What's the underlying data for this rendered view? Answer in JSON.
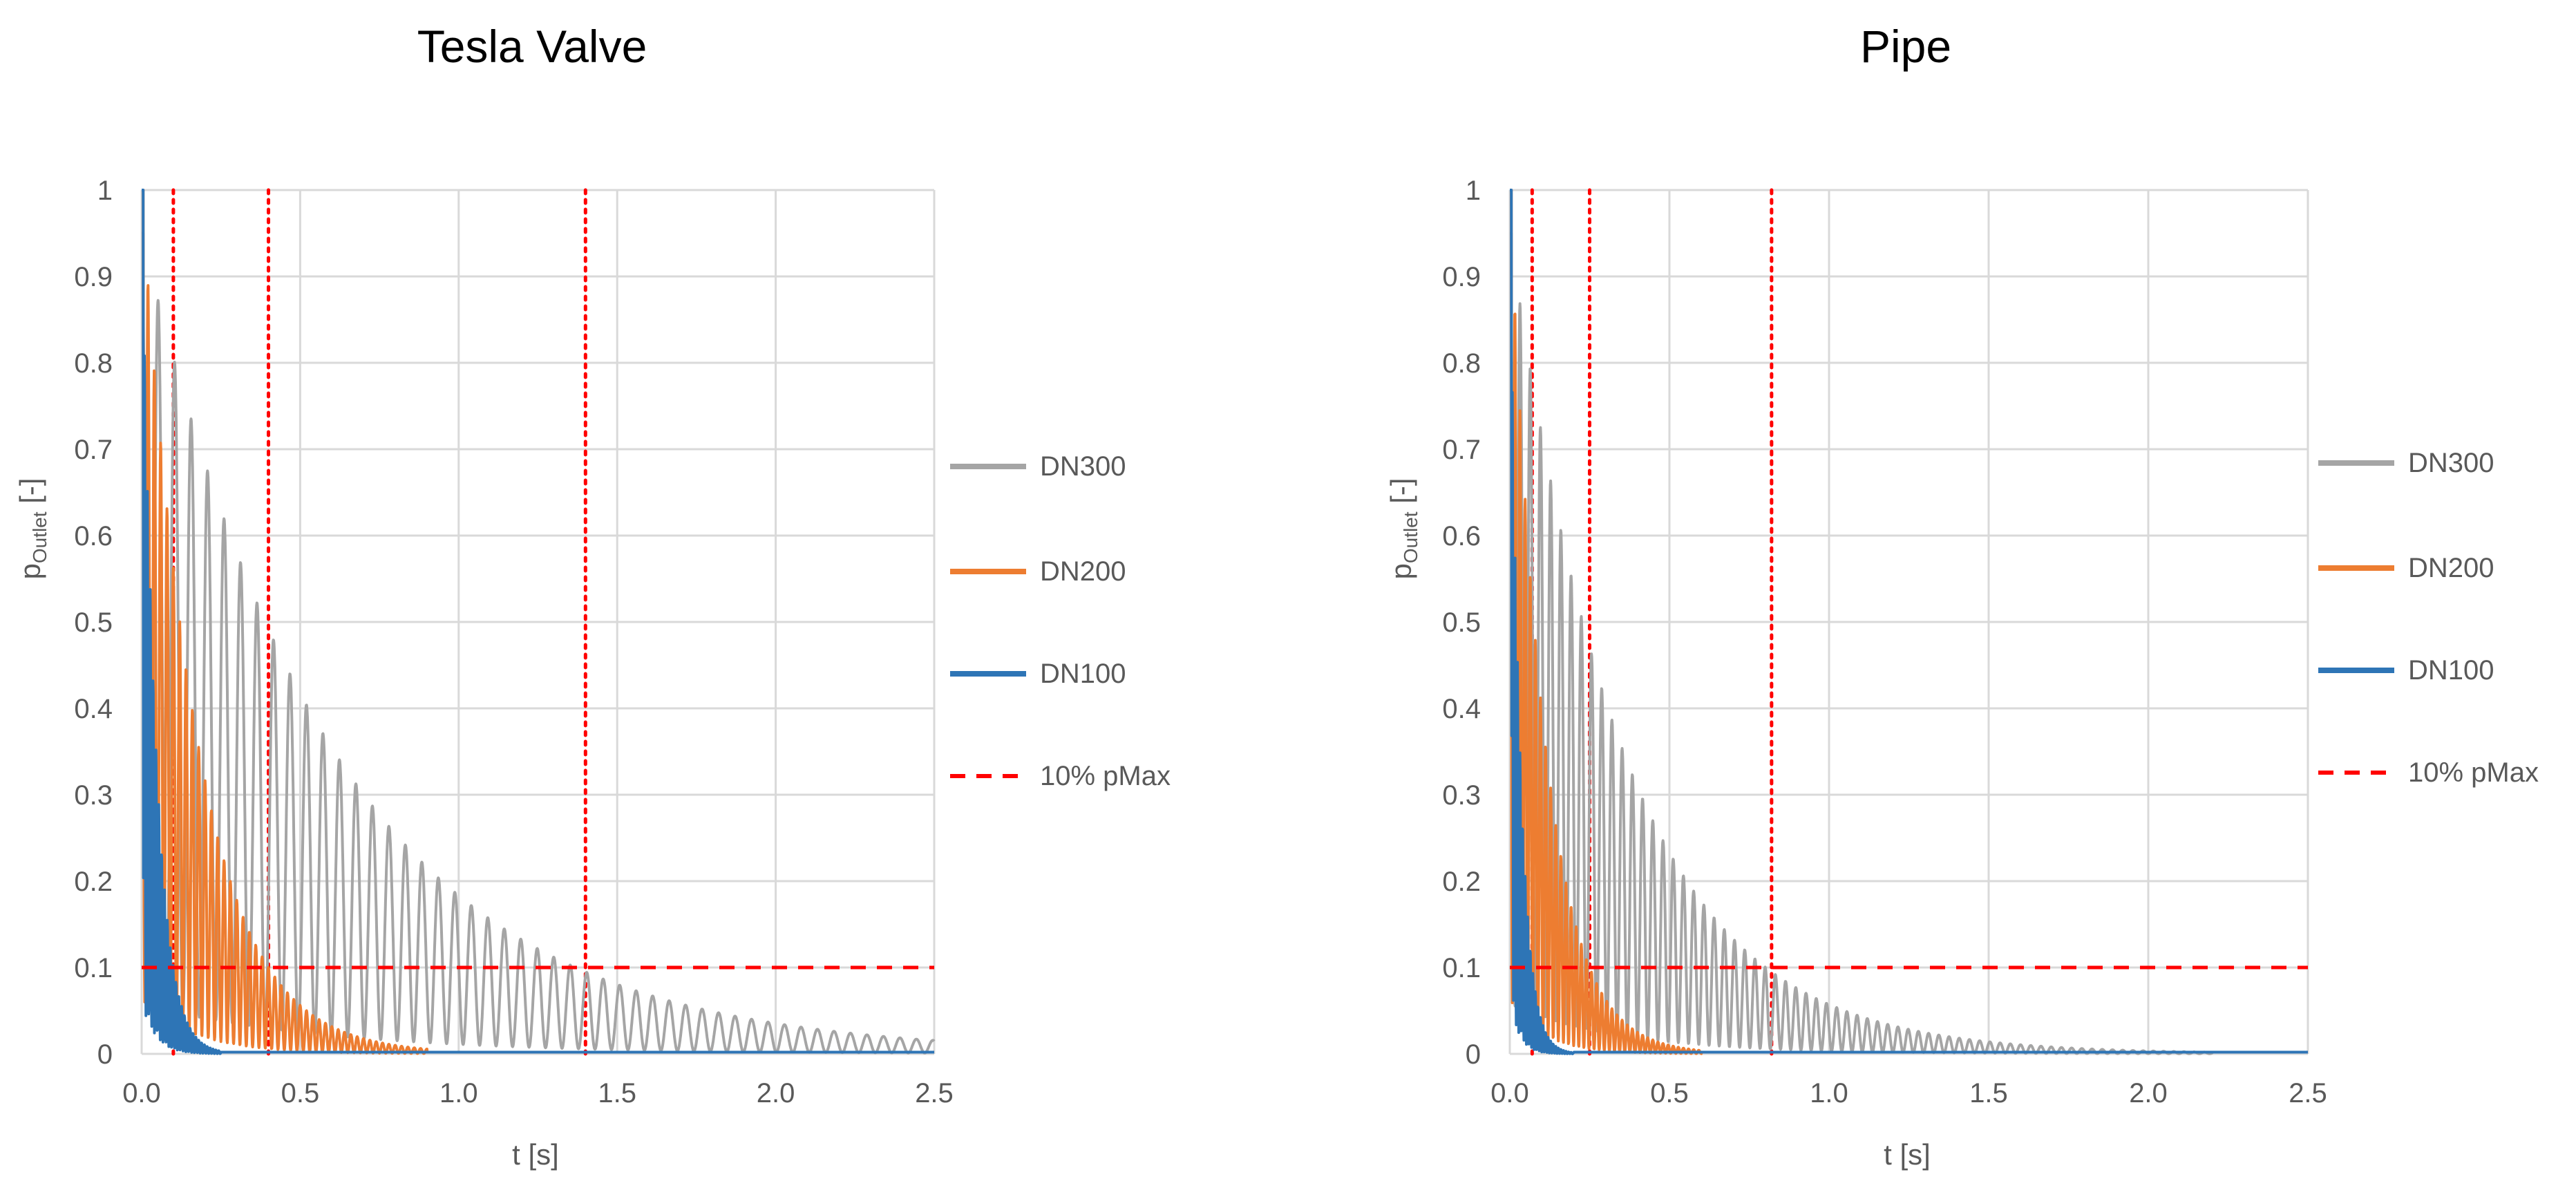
{
  "colors": {
    "DN300": "#a5a5a5",
    "DN200": "#ed7d31",
    "DN100": "#2e75b6",
    "pmax": "#ff0000",
    "grid": "#d9d9d9",
    "axis_text": "#595959"
  },
  "chart_data": [
    {
      "type": "line",
      "title": "Tesla Valve",
      "xlabel": "t [s]",
      "ylabel_main": "p",
      "ylabel_sub": "Outlet",
      "ylabel_unit": " [-]",
      "xlim": [
        0,
        2.5
      ],
      "ylim": [
        0,
        1
      ],
      "xticks": [
        "0.0",
        "0.5",
        "1.0",
        "1.5",
        "2.0",
        "2.5"
      ],
      "yticks": [
        "0",
        "0.1",
        "0.2",
        "0.3",
        "0.4",
        "0.5",
        "0.6",
        "0.7",
        "0.8",
        "0.9",
        "1"
      ],
      "grid": true,
      "legend_position": "right",
      "series": [
        {
          "name": "DN300",
          "color_key": "DN300",
          "peak": 0.95,
          "decay_time": 1.4,
          "period": 0.052,
          "tail_end": 2.5
        },
        {
          "name": "DN200",
          "color_key": "DN200",
          "peak": 1.0,
          "decay_time": 0.4,
          "period": 0.02,
          "tail_end": 0.9
        },
        {
          "name": "DN100",
          "color_key": "DN100",
          "peak": 1.0,
          "decay_time": 0.1,
          "period": 0.009,
          "tail_end": 0.25
        }
      ],
      "threshold": {
        "name": "10% pMax",
        "y": 0.1,
        "color_key": "pmax"
      },
      "vlines": [
        0.1,
        0.4,
        1.4
      ]
    },
    {
      "type": "line",
      "title": "Pipe",
      "xlabel": "t [s]",
      "ylabel_main": "p",
      "ylabel_sub": "Outlet",
      "ylabel_unit": " [-]",
      "xlim": [
        0,
        2.5
      ],
      "ylim": [
        0,
        1
      ],
      "xticks": [
        "0.0",
        "0.5",
        "1.0",
        "1.5",
        "2.0",
        "2.5"
      ],
      "yticks": [
        "0",
        "0.1",
        "0.2",
        "0.3",
        "0.4",
        "0.5",
        "0.6",
        "0.7",
        "0.8",
        "0.9",
        "1"
      ],
      "grid": true,
      "legend_position": "right",
      "series": [
        {
          "name": "DN300",
          "color_key": "DN300",
          "peak": 0.95,
          "decay_time": 0.82,
          "period": 0.032,
          "tail_end": 2.2
        },
        {
          "name": "DN200",
          "color_key": "DN200",
          "peak": 1.0,
          "decay_time": 0.25,
          "period": 0.016,
          "tail_end": 0.6
        },
        {
          "name": "DN100",
          "color_key": "DN100",
          "peak": 1.0,
          "decay_time": 0.07,
          "period": 0.008,
          "tail_end": 0.2
        }
      ],
      "threshold": {
        "name": "10% pMax",
        "y": 0.1,
        "color_key": "pmax"
      },
      "vlines": [
        0.07,
        0.25,
        0.82
      ]
    }
  ]
}
